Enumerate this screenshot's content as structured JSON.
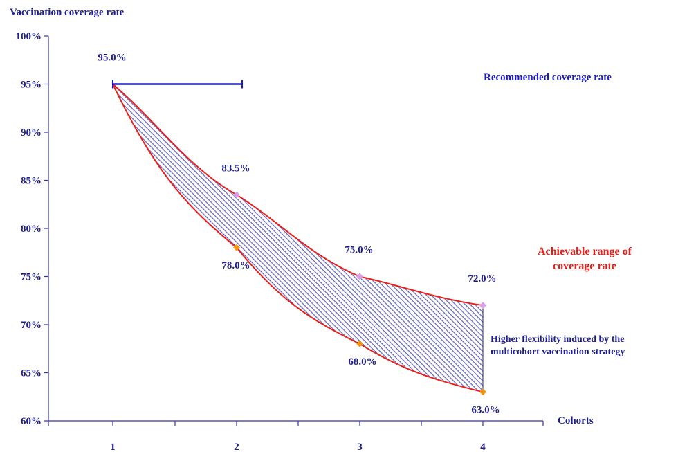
{
  "chart_data": {
    "type": "area",
    "ylabel": "Vaccination coverage rate",
    "xlabel": "Cohorts",
    "categories": [
      "1",
      "2",
      "3",
      "4"
    ],
    "ylim": [
      60,
      100
    ],
    "yticks": [
      "60%",
      "65%",
      "70%",
      "75%",
      "80%",
      "85%",
      "90%",
      "95%",
      "100%"
    ],
    "series": [
      {
        "values": [
          95.0,
          83.5,
          75.0,
          72.0
        ],
        "labels": [
          "95.0%",
          "83.5%",
          "75.0%",
          "72.0%"
        ]
      },
      {
        "values": [
          95.0,
          78.0,
          68.0,
          63.0
        ],
        "labels": [
          "",
          "78.0%",
          "68.0%",
          "63.0%"
        ]
      }
    ],
    "recommended": {
      "value": 95.0,
      "x_from": 1,
      "x_to": 2
    },
    "annotations": {
      "recommended": "Recommended coverage rate",
      "range_line1": "Achievable range of",
      "range_line2": "coverage rate",
      "flex_line1": "Higher flexibility induced by the",
      "flex_line2": "multicohort vaccination strategy"
    },
    "colors": {
      "text": "#1f1f8f",
      "axis": "#3333aa",
      "recommended": "#1d1dc8",
      "range_edge": "#e8201c",
      "range_fill": "#6b6bbf",
      "upper_marker": "#d99ee6",
      "lower_marker": "#f29411",
      "range_text": "#e8201c",
      "recommended_text": "#1d1dc8"
    }
  }
}
